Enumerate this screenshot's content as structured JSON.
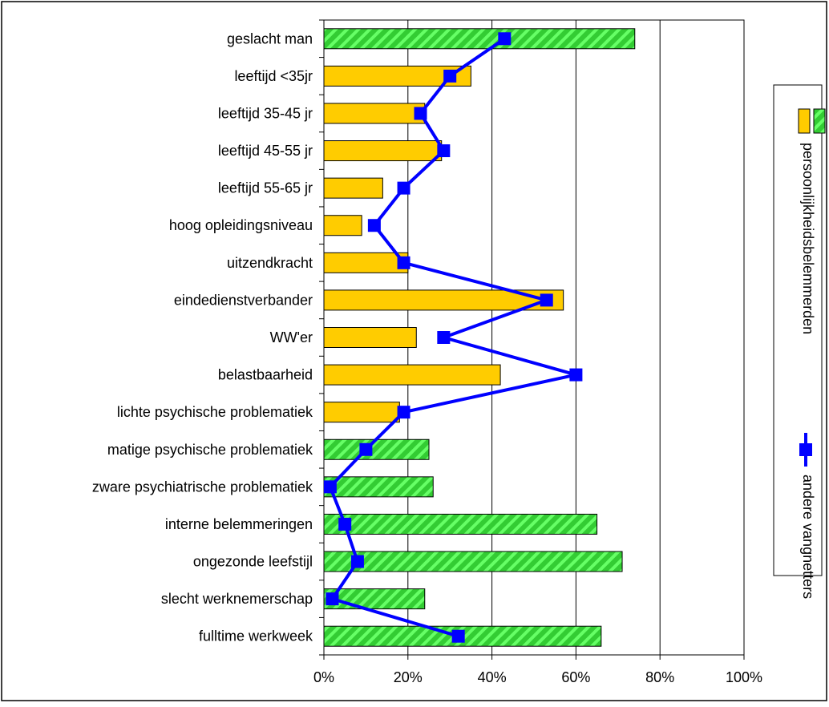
{
  "chart_data": {
    "type": "bar",
    "orientation": "horizontal",
    "title": "",
    "xlabel": "",
    "ylabel": "",
    "xlim": [
      0,
      100
    ],
    "x_unit": "%",
    "x_ticks": [
      "0%",
      "20%",
      "40%",
      "60%",
      "80%",
      "100%"
    ],
    "grid": "vertical gridlines",
    "legend_position": "right, rotated 90°",
    "categories": [
      "geslacht man",
      "leeftijd <35jr",
      "leeftijd 35-45 jr",
      "leeftijd 45-55 jr",
      "leeftijd 55-65 jr",
      "hoog opleidingsniveau",
      "uitzendkracht",
      "eindedienstverbander",
      "WW'er",
      "belastbaarheid",
      "lichte psychische problematiek",
      "matige psychische problematiek",
      "zware psychiatrische problematiek",
      "interne belemmeringen",
      "ongezonde leefstijl",
      "slecht werknemerschap",
      "fulltime werkweek"
    ],
    "series": [
      {
        "name": "persoonlijkheidsbelemmerden",
        "type": "bar",
        "values": [
          74,
          35,
          24,
          28,
          14,
          9,
          20,
          57,
          22,
          42,
          18,
          25,
          26,
          65,
          71,
          24,
          66
        ],
        "bar_styles": [
          "hatched",
          "solid",
          "solid",
          "solid",
          "solid",
          "solid",
          "solid",
          "solid",
          "solid",
          "solid",
          "solid",
          "hatched",
          "hatched",
          "hatched",
          "hatched",
          "hatched",
          "hatched"
        ]
      },
      {
        "name": "andere vangnetters",
        "type": "line",
        "values": [
          43,
          30,
          23,
          28.5,
          19,
          12,
          19,
          53,
          28.5,
          60,
          19,
          10,
          1.5,
          5,
          8,
          2,
          32
        ]
      }
    ],
    "legend_label_bars": "persoonlijkheidsbelemmerden",
    "legend_label_line": "andere vangnetters",
    "colors": {
      "bar_solid": "#ffcc00",
      "bar_hatch_base": "#33cc33",
      "bar_hatch_stripe": "#66ff66",
      "line": "#0000ff",
      "marker": "#0000ff",
      "grid": "#000000",
      "frame": "#000000"
    }
  }
}
